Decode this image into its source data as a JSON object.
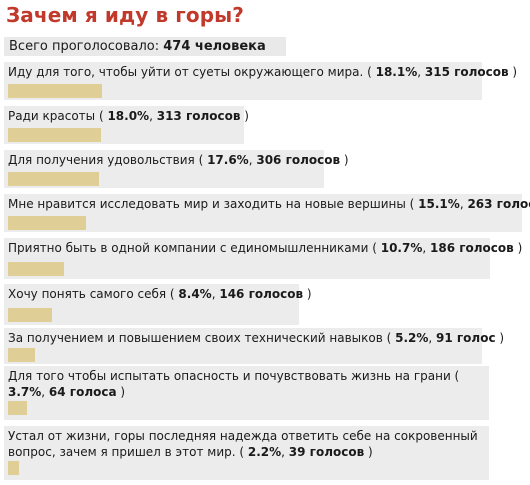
{
  "title": "Зачем я иду в горы?",
  "total": {
    "label": "Всего проголосовало:",
    "value": "474 человека"
  },
  "chart_data": {
    "type": "bar",
    "orientation": "horizontal",
    "title": "Зачем я иду в горы?",
    "bar_color": "#dfcf96",
    "options": [
      {
        "label": "Иду для того, чтобы уйти от суеты окружающего мира.",
        "percent": 18.1,
        "votes": 315,
        "votes_text": "315 голосов"
      },
      {
        "label": "Ради красоты",
        "percent": 18.0,
        "votes": 313,
        "votes_text": "313 голосов"
      },
      {
        "label": "Для получения удовольствия",
        "percent": 17.6,
        "votes": 306,
        "votes_text": "306 голосов"
      },
      {
        "label": "Мне нравится исследовать мир и заходить на новые вершины",
        "percent": 15.1,
        "votes": 263,
        "votes_text": "263 голоса"
      },
      {
        "label": "Приятно быть в одной компании с единомышленниками",
        "percent": 10.7,
        "votes": 186,
        "votes_text": "186 голосов"
      },
      {
        "label": "Хочу понять самого себя",
        "percent": 8.4,
        "votes": 146,
        "votes_text": "146 голосов"
      },
      {
        "label": "За получением и повышением своих технический навыков",
        "percent": 5.2,
        "votes": 91,
        "votes_text": "91 голос"
      },
      {
        "label": "Для того чтобы испытать опасность и почувствовать жизнь на грани",
        "percent": 3.7,
        "votes": 64,
        "votes_text": "64 голоса"
      },
      {
        "label": "Устал от жизни, горы последняя надежда ответить себе на сокровенный вопрос, зачем я пришел в этот мир.",
        "percent": 2.2,
        "votes": 39,
        "votes_text": "39 голосов"
      }
    ]
  }
}
